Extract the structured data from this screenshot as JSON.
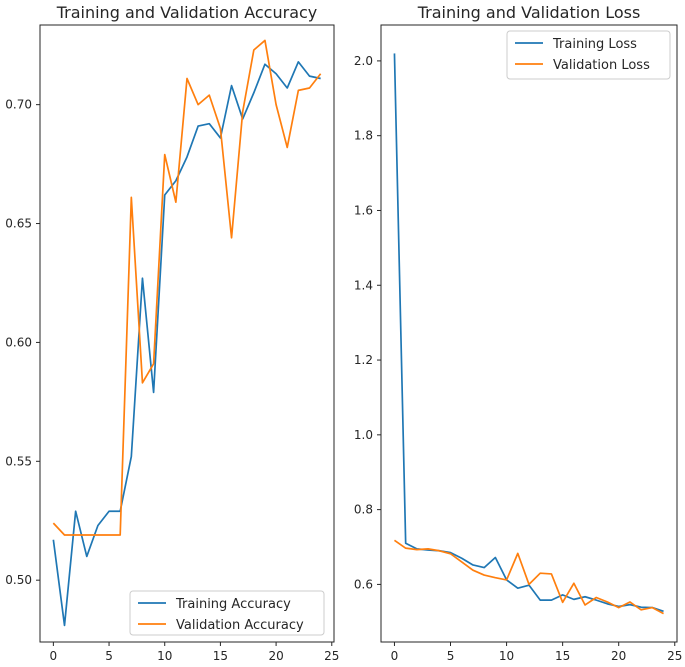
{
  "chart_data": [
    {
      "type": "line",
      "title": "Training and Validation Accuracy",
      "xlabel": "",
      "ylabel": "",
      "xlim": [
        -1.2,
        25.2
      ],
      "ylim": [
        0.474,
        0.7335
      ],
      "xticks": [
        0,
        5,
        10,
        15,
        20,
        25
      ],
      "yticks": [
        0.5,
        0.55,
        0.6,
        0.65,
        0.7
      ],
      "ytick_labels": [
        "0.50",
        "0.55",
        "0.60",
        "0.65",
        "0.70"
      ],
      "grid": false,
      "legend_position": "lower-right",
      "x": [
        0,
        1,
        2,
        3,
        4,
        5,
        6,
        7,
        8,
        9,
        10,
        11,
        12,
        13,
        14,
        15,
        16,
        17,
        18,
        19,
        20,
        21,
        22,
        23,
        24
      ],
      "series": [
        {
          "name": "Training Accuracy",
          "color": "#1f77b4",
          "values": [
            0.517,
            0.481,
            0.529,
            0.51,
            0.523,
            0.529,
            0.529,
            0.552,
            0.627,
            0.579,
            0.662,
            0.668,
            0.678,
            0.691,
            0.692,
            0.686,
            0.708,
            0.694,
            0.705,
            0.717,
            0.713,
            0.707,
            0.718,
            0.712,
            0.711
          ]
        },
        {
          "name": "Validation Accuracy",
          "color": "#ff7f0e",
          "values": [
            0.524,
            0.519,
            0.519,
            0.519,
            0.519,
            0.519,
            0.519,
            0.661,
            0.583,
            0.591,
            0.679,
            0.659,
            0.711,
            0.7,
            0.704,
            0.69,
            0.644,
            0.697,
            0.723,
            0.727,
            0.7,
            0.682,
            0.706,
            0.707,
            0.713
          ]
        }
      ]
    },
    {
      "type": "line",
      "title": "Training and Validation Loss",
      "xlabel": "",
      "ylabel": "",
      "xlim": [
        -1.2,
        25.2
      ],
      "ylim": [
        0.446,
        2.096
      ],
      "xticks": [
        0,
        5,
        10,
        15,
        20,
        25
      ],
      "yticks": [
        0.6,
        0.8,
        1.0,
        1.2,
        1.4,
        1.6,
        1.8,
        2.0
      ],
      "ytick_labels": [
        "0.6",
        "0.8",
        "1.0",
        "1.2",
        "1.4",
        "1.6",
        "1.8",
        "2.0"
      ],
      "grid": false,
      "legend_position": "upper-right",
      "x": [
        0,
        1,
        2,
        3,
        4,
        5,
        6,
        7,
        8,
        9,
        10,
        11,
        12,
        13,
        14,
        15,
        16,
        17,
        18,
        19,
        20,
        21,
        22,
        23,
        24
      ],
      "series": [
        {
          "name": "Training Loss",
          "color": "#1f77b4",
          "values": [
            2.02,
            0.71,
            0.695,
            0.692,
            0.69,
            0.685,
            0.67,
            0.652,
            0.645,
            0.672,
            0.612,
            0.59,
            0.598,
            0.558,
            0.558,
            0.572,
            0.56,
            0.567,
            0.558,
            0.548,
            0.541,
            0.546,
            0.539,
            0.538,
            0.528
          ]
        },
        {
          "name": "Validation Loss",
          "color": "#ff7f0e",
          "values": [
            0.718,
            0.697,
            0.693,
            0.695,
            0.69,
            0.682,
            0.66,
            0.638,
            0.625,
            0.618,
            0.612,
            0.683,
            0.6,
            0.63,
            0.628,
            0.552,
            0.603,
            0.545,
            0.565,
            0.553,
            0.538,
            0.553,
            0.532,
            0.538,
            0.522
          ]
        }
      ]
    }
  ]
}
